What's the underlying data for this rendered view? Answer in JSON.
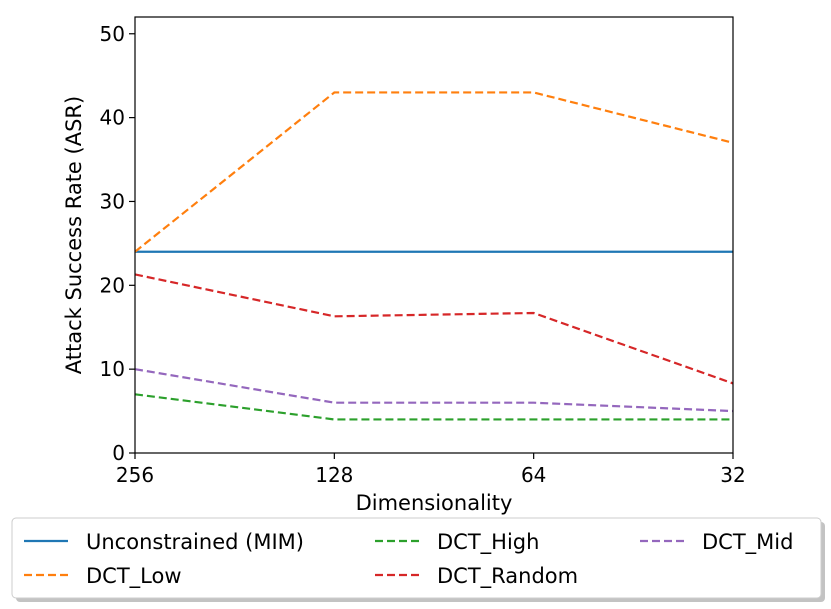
{
  "chart_data": {
    "type": "line",
    "title": "",
    "xlabel": "Dimensionality",
    "ylabel": "Attack Success Rate (ASR)",
    "categories": [
      "256",
      "128",
      "64",
      "32"
    ],
    "ylim": [
      0,
      52
    ],
    "yticks": [
      "0",
      "10",
      "20",
      "30",
      "40",
      "50"
    ],
    "legend_position": "bottom (below plot)",
    "series": [
      {
        "name": "Unconstrained (MIM)",
        "values": [
          24,
          24,
          24,
          24
        ],
        "color": "#1f77b4",
        "dash": "solid"
      },
      {
        "name": "DCT_Low",
        "values": [
          24,
          43,
          43,
          37
        ],
        "color": "#ff7f0e",
        "dash": "dashed"
      },
      {
        "name": "DCT_High",
        "values": [
          7,
          4,
          4,
          4
        ],
        "color": "#2ca02c",
        "dash": "dashed"
      },
      {
        "name": "DCT_Random",
        "values": [
          21.3,
          16.3,
          16.7,
          8.3
        ],
        "color": "#d62728",
        "dash": "dashed"
      },
      {
        "name": "DCT_Mid",
        "values": [
          10,
          6,
          6,
          5
        ],
        "color": "#9467bd",
        "dash": "dashed"
      }
    ]
  }
}
